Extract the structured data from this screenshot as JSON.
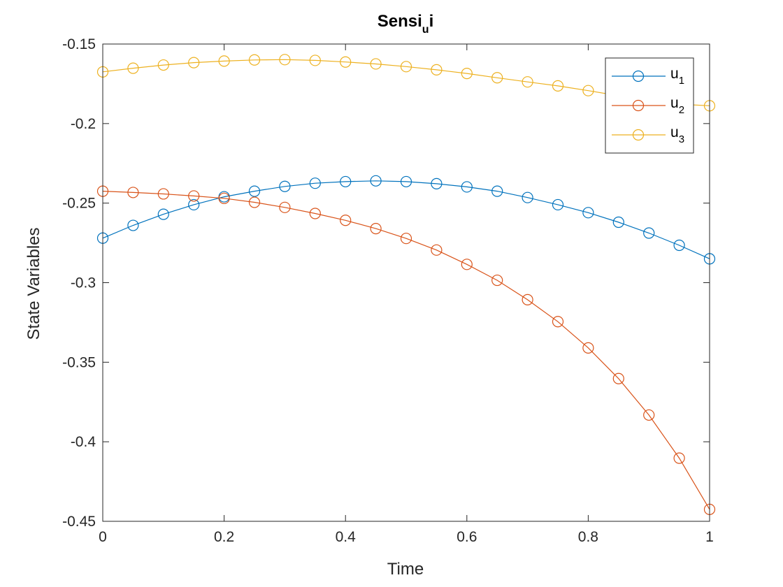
{
  "chart_data": {
    "type": "line",
    "title": "Sensi",
    "title_sub": "u",
    "title_tail": "i",
    "xlabel": "Time",
    "ylabel": "State Variables",
    "xlim": [
      0,
      1
    ],
    "ylim": [
      -0.45,
      -0.15
    ],
    "xticks": [
      0,
      0.2,
      0.4,
      0.6,
      0.8,
      1
    ],
    "xtick_labels": [
      "0",
      "0.2",
      "0.4",
      "0.6",
      "0.8",
      "1"
    ],
    "yticks": [
      -0.45,
      -0.4,
      -0.35,
      -0.3,
      -0.25,
      -0.2,
      -0.15
    ],
    "ytick_labels": [
      "-0.45",
      "-0.4",
      "-0.35",
      "-0.3",
      "-0.25",
      "-0.2",
      "-0.15"
    ],
    "grid": false,
    "legend_position": "top-right",
    "marker": "circle",
    "x": [
      0,
      0.05,
      0.1,
      0.15,
      0.2,
      0.25,
      0.3,
      0.35,
      0.4,
      0.45,
      0.5,
      0.55,
      0.6,
      0.65,
      0.7,
      0.75,
      0.8,
      0.85,
      0.9,
      0.95,
      1
    ],
    "series": [
      {
        "name": "u",
        "sub": "1",
        "color": "#0072BD",
        "values": [
          -0.272,
          -0.264,
          -0.257,
          -0.251,
          -0.246,
          -0.2425,
          -0.2395,
          -0.2375,
          -0.2365,
          -0.236,
          -0.2365,
          -0.2378,
          -0.2398,
          -0.2425,
          -0.2465,
          -0.251,
          -0.256,
          -0.262,
          -0.2688,
          -0.2765,
          -0.285
        ]
      },
      {
        "name": "u",
        "sub": "2",
        "color": "#D95319",
        "values": [
          -0.2425,
          -0.2433,
          -0.2442,
          -0.2455,
          -0.247,
          -0.2495,
          -0.2527,
          -0.2565,
          -0.2608,
          -0.266,
          -0.2722,
          -0.2795,
          -0.2885,
          -0.2985,
          -0.3107,
          -0.3245,
          -0.341,
          -0.3603,
          -0.3832,
          -0.4103,
          -0.4425
        ]
      },
      {
        "name": "u",
        "sub": "3",
        "color": "#EDB120",
        "values": [
          -0.1675,
          -0.1652,
          -0.1632,
          -0.1617,
          -0.1607,
          -0.16,
          -0.1598,
          -0.1603,
          -0.1613,
          -0.1625,
          -0.1642,
          -0.1662,
          -0.1685,
          -0.1712,
          -0.1738,
          -0.1763,
          -0.1793,
          -0.1825,
          -0.1853,
          -0.1878,
          -0.1888
        ]
      }
    ]
  }
}
